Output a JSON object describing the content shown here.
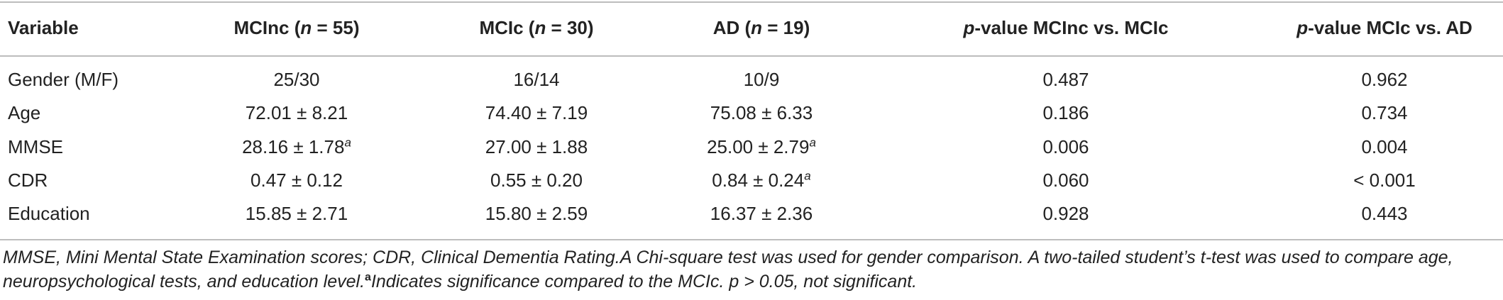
{
  "table": {
    "header": [
      [
        {
          "text": "Variable"
        }
      ],
      [
        {
          "text": "MCInc ("
        },
        {
          "text": "n",
          "italic": true
        },
        {
          "text": " = 55)"
        }
      ],
      [
        {
          "text": "MCIc ("
        },
        {
          "text": "n",
          "italic": true
        },
        {
          "text": " = 30)"
        }
      ],
      [
        {
          "text": "AD ("
        },
        {
          "text": "n",
          "italic": true
        },
        {
          "text": " = 19)"
        }
      ],
      [
        {
          "text": "p",
          "italic": true
        },
        {
          "text": "-value MCInc vs. MCIc"
        }
      ],
      [
        {
          "text": "p",
          "italic": true
        },
        {
          "text": "-value MCIc vs. AD"
        }
      ]
    ],
    "rows": [
      [
        {
          "text": "Gender (M/F)"
        },
        {
          "text": "25/30"
        },
        {
          "text": "16/14"
        },
        {
          "text": "10/9"
        },
        {
          "text": "0.487"
        },
        {
          "text": "0.962"
        }
      ],
      [
        {
          "text": "Age"
        },
        {
          "text": "72.01 ± 8.21"
        },
        {
          "text": "74.40 ± 7.19"
        },
        {
          "text": "75.08 ± 6.33"
        },
        {
          "text": "0.186"
        },
        {
          "text": "0.734"
        }
      ],
      [
        {
          "text": "MMSE"
        },
        {
          "text": "28.16 ± 1.78",
          "sup": "a"
        },
        {
          "text": "27.00 ± 1.88"
        },
        {
          "text": "25.00 ± 2.79",
          "sup": "a"
        },
        {
          "text": "0.006"
        },
        {
          "text": "0.004"
        }
      ],
      [
        {
          "text": "CDR"
        },
        {
          "text": "0.47 ± 0.12"
        },
        {
          "text": "0.55 ± 0.20"
        },
        {
          "text": "0.84 ± 0.24",
          "sup": "a"
        },
        {
          "text": "0.060"
        },
        {
          "text": "< 0.001"
        }
      ],
      [
        {
          "text": "Education"
        },
        {
          "text": "15.85 ± 2.71"
        },
        {
          "text": "15.80 ± 2.59"
        },
        {
          "text": "16.37 ± 2.36"
        },
        {
          "text": "0.928"
        },
        {
          "text": "0.443"
        }
      ]
    ]
  },
  "footnote": [
    {
      "text": "MMSE, Mini Mental State Examination scores; CDR, Clinical Dementia Rating.A Chi-square test was used for gender comparison. A two-tailed student’s t-test was used to compare age, neuropsychological tests, and education level.",
      "italic": true
    },
    {
      "text": "a",
      "sup": true
    },
    {
      "text": "Indicates significance compared to the MCIc. p > 0.05, not significant.",
      "italic": true
    }
  ]
}
